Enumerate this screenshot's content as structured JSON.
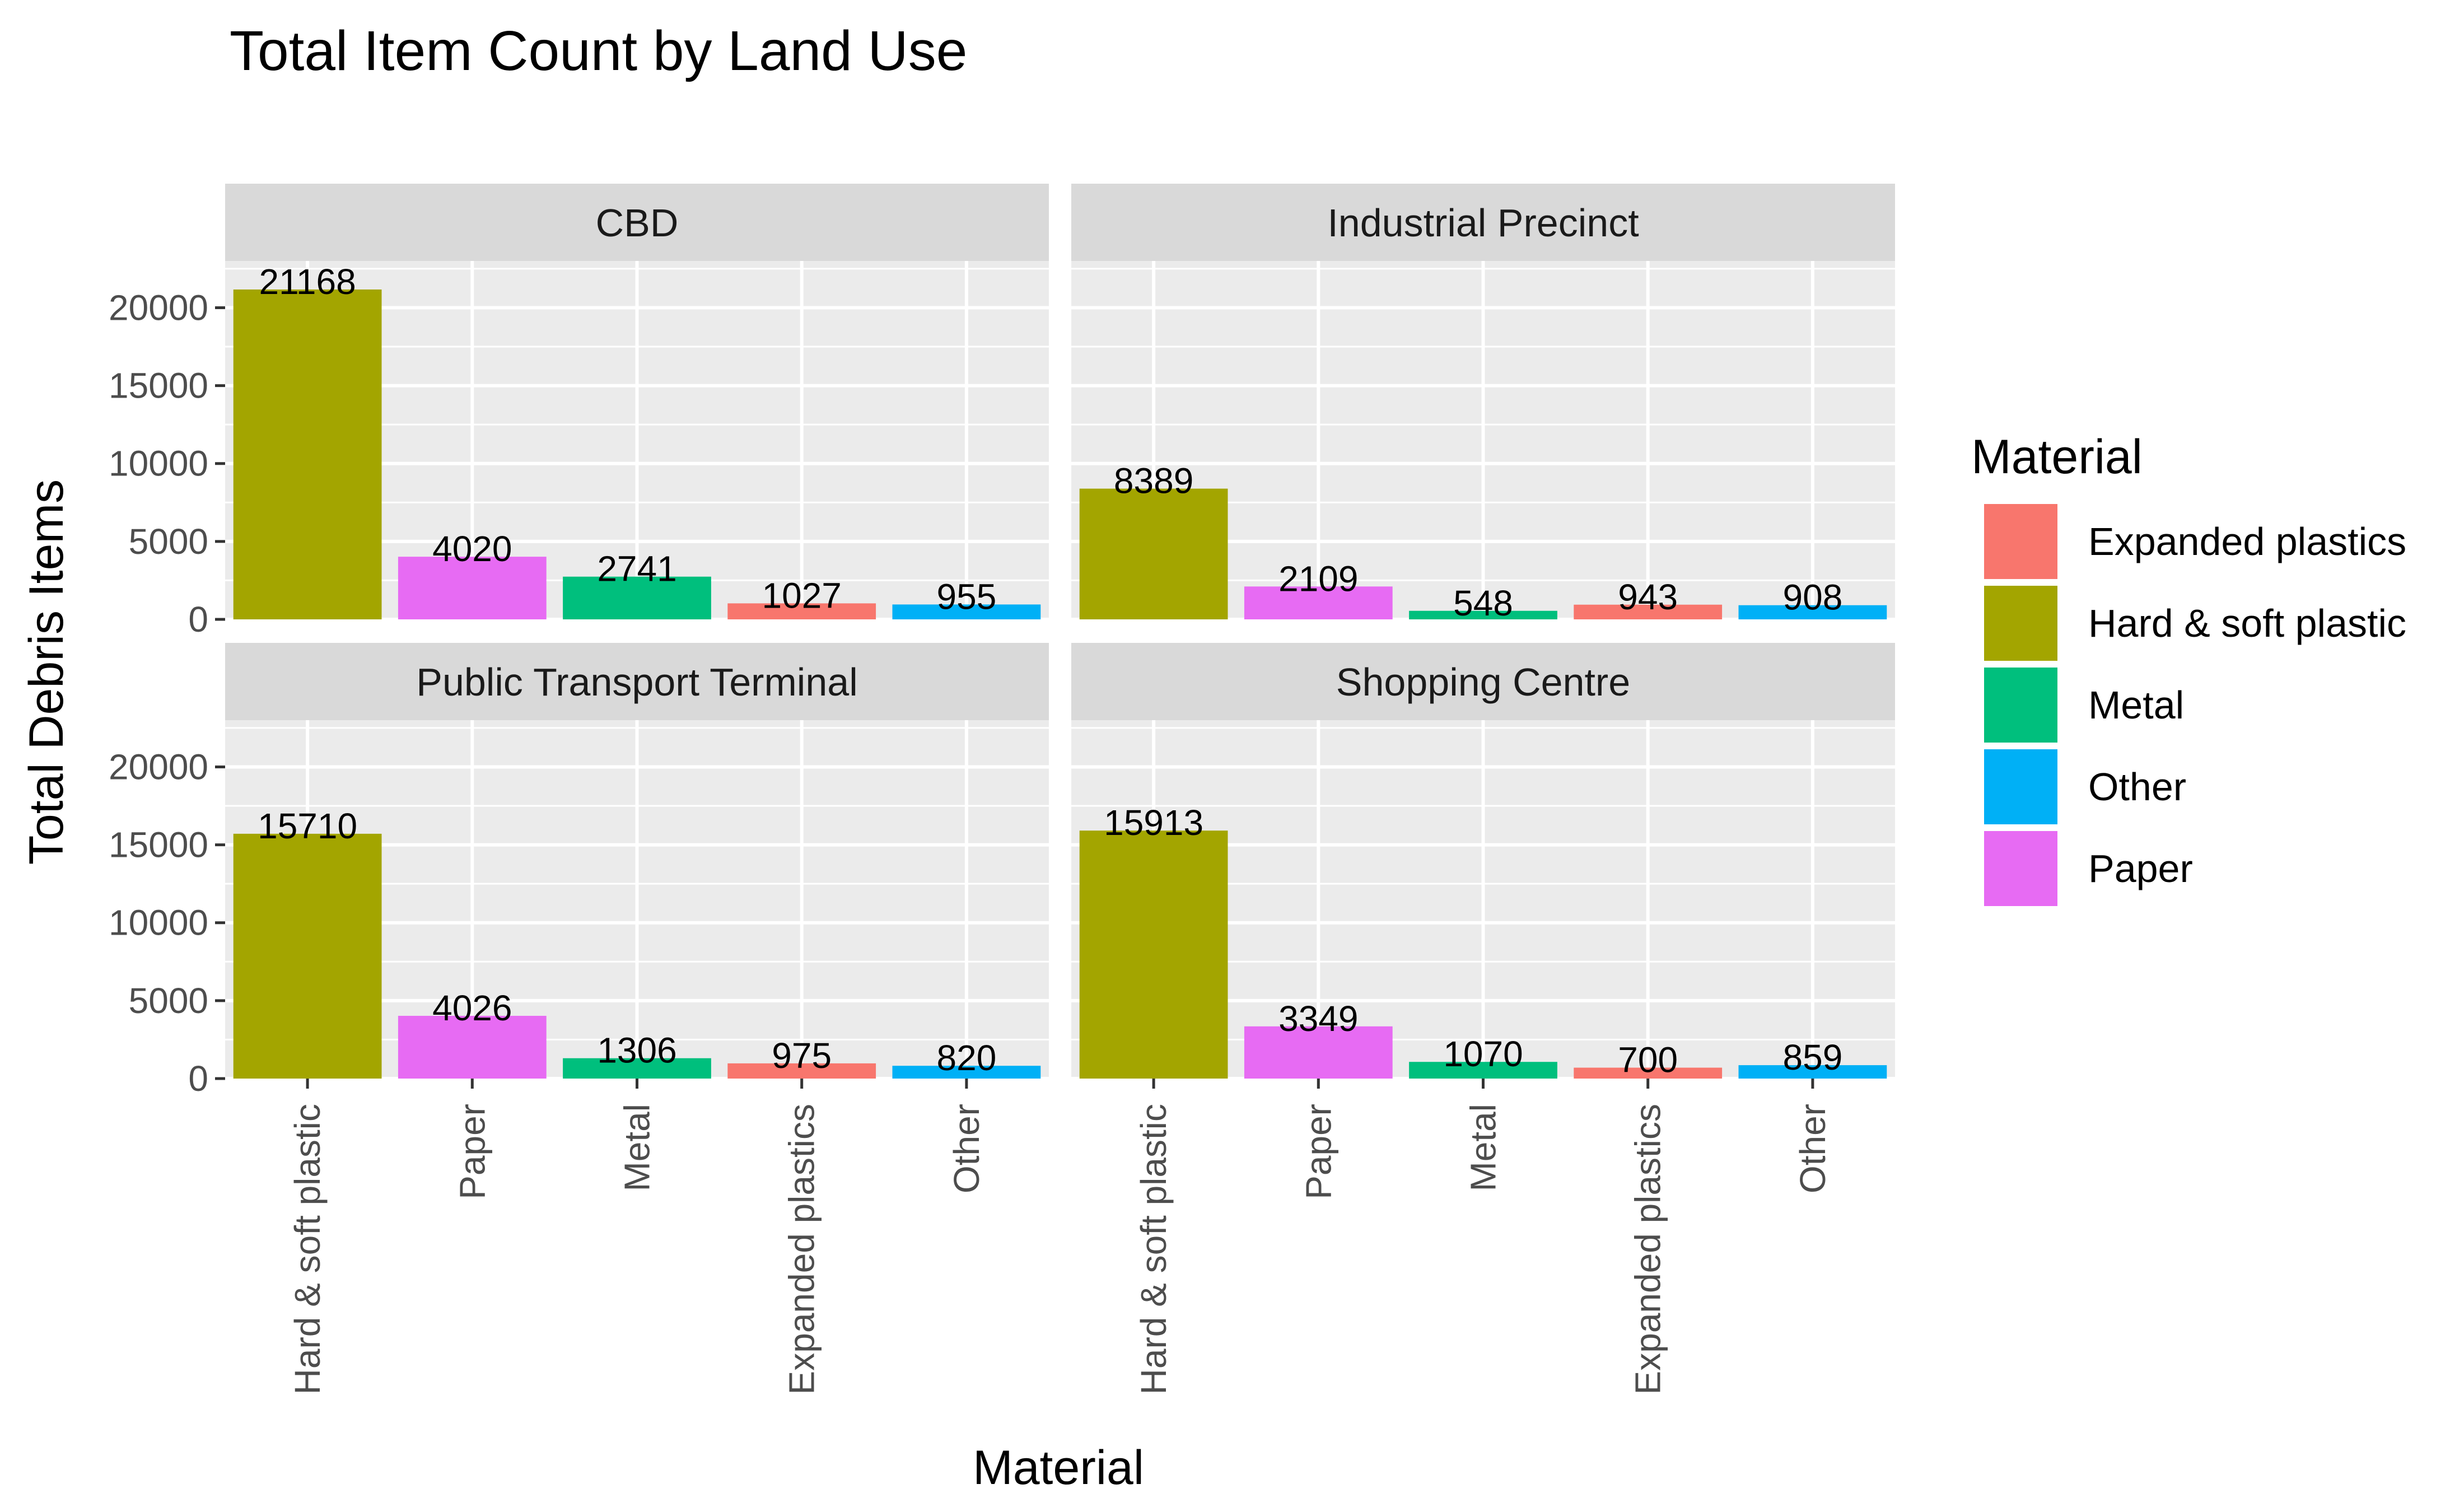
{
  "chart_data": {
    "type": "bar",
    "title": "Total Item Count by Land Use",
    "xlabel": "Material",
    "ylabel": "Total Debris Items",
    "ylim": [
      0,
      23000
    ],
    "y_ticks": [
      0,
      5000,
      10000,
      15000,
      20000
    ],
    "y_tick_labels": [
      "0",
      "5000",
      "10000",
      "15000",
      "20000"
    ],
    "grid": true,
    "categories": [
      "Hard & soft plastic",
      "Paper",
      "Metal",
      "Expanded plastics",
      "Other"
    ],
    "facets": [
      {
        "name": "CBD",
        "values": [
          21168,
          4020,
          2741,
          1027,
          955
        ]
      },
      {
        "name": "Industrial Precinct",
        "values": [
          8389,
          2109,
          548,
          943,
          908
        ]
      },
      {
        "name": "Public Transport Terminal",
        "values": [
          15710,
          4026,
          1306,
          975,
          820
        ]
      },
      {
        "name": "Shopping Centre",
        "values": [
          15913,
          3349,
          1070,
          700,
          859
        ]
      }
    ],
    "legend": {
      "title": "Material",
      "position": "right",
      "entries": [
        "Expanded plastics",
        "Hard & soft plastic",
        "Metal",
        "Other",
        "Paper"
      ]
    },
    "colors": {
      "Expanded plastics": "#F8766D",
      "Hard & soft plastic": "#A3A500",
      "Metal": "#00BF7D",
      "Other": "#00B0F6",
      "Paper": "#E76BF3"
    },
    "panel_background": "#EBEBEB",
    "strip_background": "#D9D9D9",
    "grid_color": "#FFFFFF"
  }
}
